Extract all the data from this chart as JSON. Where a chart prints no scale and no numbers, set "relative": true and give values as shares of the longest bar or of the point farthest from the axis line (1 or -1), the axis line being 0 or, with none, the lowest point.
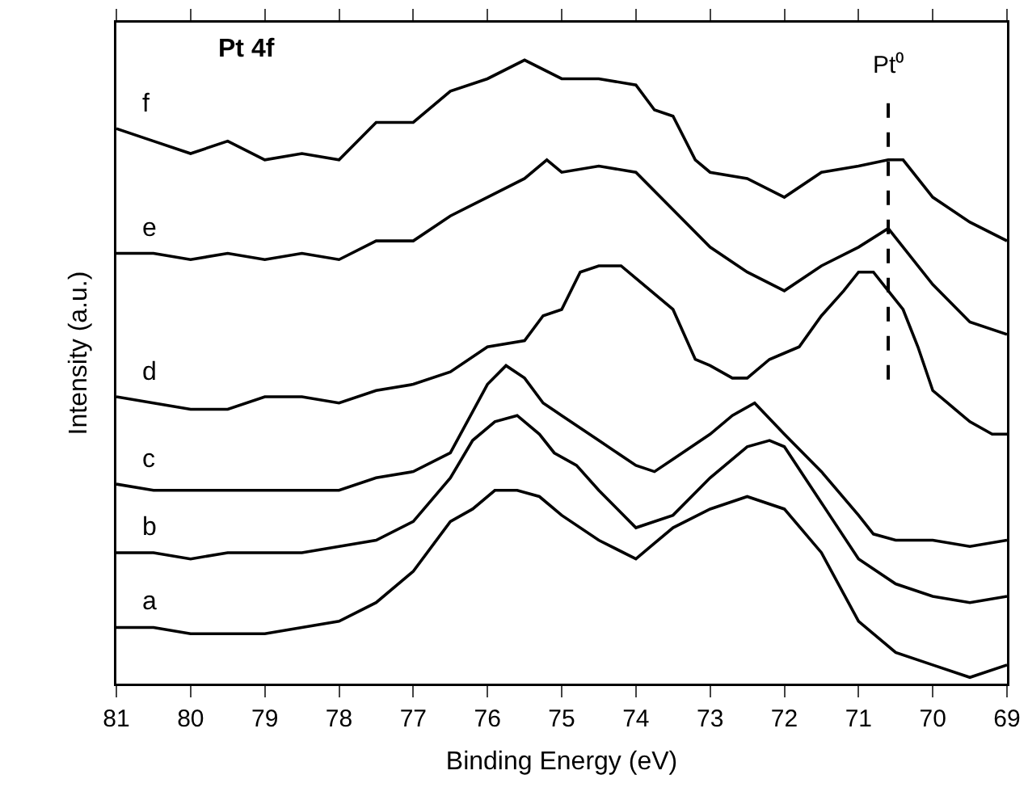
{
  "chart_data": {
    "type": "line",
    "relative": true,
    "xlabel": "Binding Energy (eV)",
    "ylabel": "Intensity (a.u.)",
    "xlim": [
      81,
      69
    ],
    "xticks": [
      81,
      80,
      79,
      78,
      77,
      76,
      75,
      74,
      73,
      72,
      71,
      70,
      69
    ],
    "tick_labels": "x",
    "legend": false,
    "grid": false,
    "marker": "none",
    "line_style": "solid",
    "annotations": [
      "Pt 4f"
    ],
    "ref_lines": [
      {
        "axis": "x",
        "value": 70.6,
        "label": "Pt⁰",
        "line_style": "dashed",
        "color": "#000000"
      }
    ],
    "series": [
      {
        "name": "a",
        "color": "#000000",
        "x": [
          81,
          80.5,
          80,
          79.5,
          79,
          78.5,
          78,
          77.5,
          77,
          76.5,
          76.2,
          75.9,
          75.6,
          75.3,
          75,
          74.5,
          74,
          73.8,
          73.5,
          73,
          72.5,
          72,
          71.5,
          71,
          70.5,
          70,
          69.5,
          69
        ],
        "values": [
          0.09,
          0.09,
          0.08,
          0.08,
          0.08,
          0.09,
          0.1,
          0.13,
          0.18,
          0.26,
          0.28,
          0.31,
          0.31,
          0.3,
          0.27,
          0.23,
          0.2,
          0.22,
          0.25,
          0.28,
          0.3,
          0.28,
          0.21,
          0.1,
          0.05,
          0.03,
          0.01,
          0.03
        ]
      },
      {
        "name": "b",
        "color": "#000000",
        "x": [
          81,
          80.5,
          80,
          79.5,
          79,
          78.5,
          78,
          77.5,
          77,
          76.5,
          76.2,
          75.9,
          75.6,
          75.3,
          75.1,
          74.8,
          74.5,
          74,
          73.5,
          73,
          72.5,
          72.2,
          72,
          71.5,
          71,
          70.5,
          70,
          69.5,
          69
        ],
        "values": [
          0.21,
          0.21,
          0.2,
          0.21,
          0.21,
          0.21,
          0.22,
          0.23,
          0.26,
          0.33,
          0.39,
          0.42,
          0.43,
          0.4,
          0.37,
          0.35,
          0.31,
          0.25,
          0.27,
          0.33,
          0.38,
          0.39,
          0.38,
          0.29,
          0.2,
          0.16,
          0.14,
          0.13,
          0.14
        ]
      },
      {
        "name": "c",
        "color": "#000000",
        "x": [
          81,
          80.5,
          80,
          79.5,
          79,
          78.5,
          78,
          77.5,
          77,
          76.5,
          76,
          75.75,
          75.5,
          75.25,
          75,
          74.5,
          74,
          73.75,
          73.5,
          73,
          72.7,
          72.4,
          72,
          71.5,
          71,
          70.8,
          70.5,
          70,
          69.5,
          69
        ],
        "values": [
          0.32,
          0.31,
          0.31,
          0.31,
          0.31,
          0.31,
          0.31,
          0.33,
          0.34,
          0.37,
          0.48,
          0.51,
          0.49,
          0.45,
          0.43,
          0.39,
          0.35,
          0.34,
          0.36,
          0.4,
          0.43,
          0.45,
          0.4,
          0.34,
          0.27,
          0.24,
          0.23,
          0.23,
          0.22,
          0.23
        ]
      },
      {
        "name": "d",
        "color": "#000000",
        "x": [
          81,
          80.5,
          80,
          79.5,
          79,
          78.5,
          78,
          77.5,
          77,
          76.5,
          76,
          75.5,
          75.25,
          75,
          74.75,
          74.5,
          74.2,
          74,
          73.5,
          73.2,
          73,
          72.7,
          72.5,
          72.2,
          72,
          71.8,
          71.5,
          71.2,
          71,
          70.8,
          70.6,
          70.4,
          70.2,
          70,
          69.8,
          69.5,
          69.2,
          69
        ],
        "values": [
          0.46,
          0.45,
          0.44,
          0.44,
          0.46,
          0.46,
          0.45,
          0.47,
          0.48,
          0.5,
          0.54,
          0.55,
          0.59,
          0.6,
          0.66,
          0.67,
          0.67,
          0.65,
          0.6,
          0.52,
          0.51,
          0.49,
          0.49,
          0.52,
          0.53,
          0.54,
          0.59,
          0.63,
          0.66,
          0.66,
          0.63,
          0.6,
          0.54,
          0.47,
          0.45,
          0.42,
          0.4,
          0.4
        ]
      },
      {
        "name": "e",
        "color": "#000000",
        "x": [
          81,
          80.5,
          80,
          79.5,
          79,
          78.5,
          78,
          77.5,
          77,
          76.5,
          76,
          75.5,
          75.2,
          75,
          74.5,
          74,
          73.5,
          73,
          72.5,
          72,
          71.5,
          71,
          70.6,
          70,
          69.5,
          69
        ],
        "values": [
          0.69,
          0.69,
          0.68,
          0.69,
          0.68,
          0.69,
          0.68,
          0.71,
          0.71,
          0.75,
          0.78,
          0.81,
          0.84,
          0.82,
          0.83,
          0.82,
          0.76,
          0.7,
          0.66,
          0.63,
          0.67,
          0.7,
          0.73,
          0.64,
          0.58,
          0.56
        ]
      },
      {
        "name": "f",
        "color": "#000000",
        "x": [
          81,
          80.5,
          80,
          79.5,
          79,
          78.5,
          78,
          77.5,
          77,
          76.5,
          76,
          75.5,
          75,
          74.5,
          74,
          73.75,
          73.5,
          73.2,
          73,
          72.5,
          72,
          71.5,
          71,
          70.6,
          70.4,
          70,
          69.5,
          69
        ],
        "values": [
          0.89,
          0.87,
          0.85,
          0.87,
          0.84,
          0.85,
          0.84,
          0.9,
          0.9,
          0.95,
          0.97,
          1.0,
          0.97,
          0.97,
          0.96,
          0.92,
          0.91,
          0.84,
          0.82,
          0.81,
          0.78,
          0.82,
          0.83,
          0.84,
          0.84,
          0.78,
          0.74,
          0.71
        ]
      }
    ]
  }
}
